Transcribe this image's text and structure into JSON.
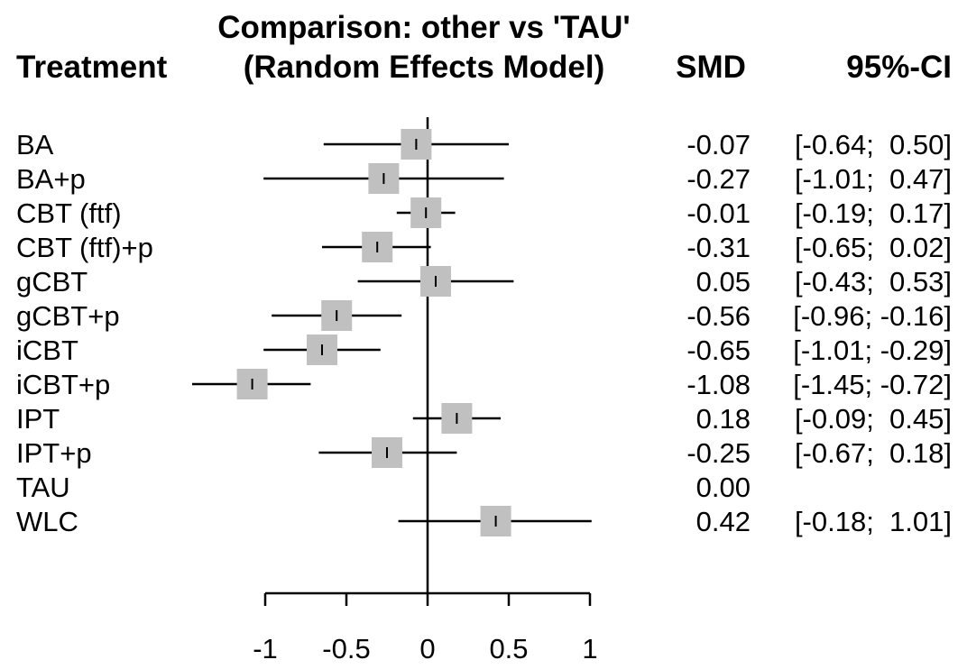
{
  "chart_data": {
    "type": "forest",
    "header": {
      "treatment_label": "Treatment",
      "comparison_line1": "Comparison: other vs 'TAU'",
      "comparison_line2": "(Random Effects Model)",
      "smd_label": "SMD",
      "ci_label": "95%-CI"
    },
    "x_ticks": [
      -1,
      -0.5,
      0,
      0.5,
      1
    ],
    "x_tick_labels": [
      "-1",
      "-0.5",
      "0",
      "0.5",
      "1"
    ],
    "xlim": [
      -1,
      1
    ],
    "reference_line": 0,
    "rows": [
      {
        "treatment": "BA",
        "smd": -0.07,
        "lower": -0.64,
        "upper": 0.5,
        "smd_text": "-0.07",
        "ci_text": "[-0.64;  0.50]"
      },
      {
        "treatment": "BA+p",
        "smd": -0.27,
        "lower": -1.01,
        "upper": 0.47,
        "smd_text": "-0.27",
        "ci_text": "[-1.01;  0.47]"
      },
      {
        "treatment": "CBT (ftf)",
        "smd": -0.01,
        "lower": -0.19,
        "upper": 0.17,
        "smd_text": "-0.01",
        "ci_text": "[-0.19;  0.17]"
      },
      {
        "treatment": "CBT (ftf)+p",
        "smd": -0.31,
        "lower": -0.65,
        "upper": 0.02,
        "smd_text": "-0.31",
        "ci_text": "[-0.65;  0.02]"
      },
      {
        "treatment": "gCBT",
        "smd": 0.05,
        "lower": -0.43,
        "upper": 0.53,
        "smd_text": "0.05",
        "ci_text": "[-0.43;  0.53]"
      },
      {
        "treatment": "gCBT+p",
        "smd": -0.56,
        "lower": -0.96,
        "upper": -0.16,
        "smd_text": "-0.56",
        "ci_text": "[-0.96; -0.16]"
      },
      {
        "treatment": "iCBT",
        "smd": -0.65,
        "lower": -1.01,
        "upper": -0.29,
        "smd_text": "-0.65",
        "ci_text": "[-1.01; -0.29]"
      },
      {
        "treatment": "iCBT+p",
        "smd": -1.08,
        "lower": -1.45,
        "upper": -0.72,
        "smd_text": "-1.08",
        "ci_text": "[-1.45; -0.72]"
      },
      {
        "treatment": "IPT",
        "smd": 0.18,
        "lower": -0.09,
        "upper": 0.45,
        "smd_text": "0.18",
        "ci_text": "[-0.09;  0.45]"
      },
      {
        "treatment": "IPT+p",
        "smd": -0.25,
        "lower": -0.67,
        "upper": 0.18,
        "smd_text": "-0.25",
        "ci_text": "[-0.67;  0.18]"
      },
      {
        "treatment": "TAU",
        "smd": 0.0,
        "lower": null,
        "upper": null,
        "smd_text": "0.00",
        "ci_text": ""
      },
      {
        "treatment": "WLC",
        "smd": 0.42,
        "lower": -0.18,
        "upper": 1.01,
        "smd_text": "0.42",
        "ci_text": "[-0.18;  1.01]"
      }
    ],
    "colors": {
      "box": "#c0c0c0",
      "line": "#000000"
    }
  }
}
